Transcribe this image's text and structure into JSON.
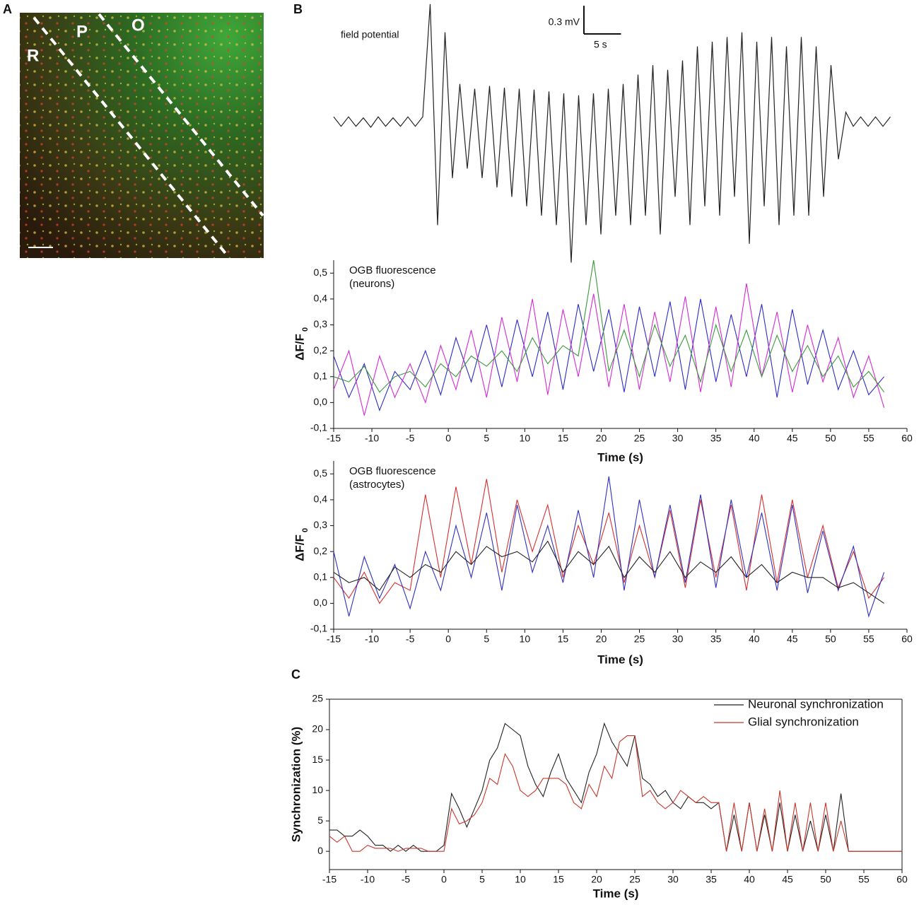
{
  "panel_labels": [
    "A",
    "B",
    "C"
  ],
  "panel_a": {
    "labels": [
      "R",
      "P",
      "O"
    ]
  },
  "chart_data": [
    {
      "type": "trace",
      "title": "field potential",
      "scale_bar": {
        "x": 5,
        "y": 0.3,
        "x_label": "5 s",
        "y_label": "0.3 mV"
      },
      "x": [
        -16,
        -15,
        -14,
        -13,
        -12,
        -11,
        -10,
        -9,
        -8,
        -7,
        -6,
        -5,
        -4,
        -3,
        -2,
        -1,
        0,
        1,
        2,
        3,
        4,
        5,
        6,
        7,
        8,
        9,
        10,
        11,
        12,
        13,
        14,
        15,
        16,
        17,
        18,
        19,
        20,
        21,
        22,
        23,
        24,
        25,
        26,
        27,
        28,
        29,
        30,
        31,
        32,
        33,
        34,
        35,
        36,
        37,
        38,
        39,
        40,
        41,
        42,
        43,
        44,
        45,
        46,
        47,
        48,
        49,
        50,
        51,
        52,
        53,
        54,
        55,
        56,
        57,
        58,
        59
      ],
      "values": [
        0.05,
        -0.05,
        0.05,
        -0.05,
        0.04,
        -0.06,
        0.05,
        -0.05,
        0.04,
        -0.05,
        0.05,
        -0.05,
        0.05,
        1.25,
        -1.1,
        0.95,
        -0.6,
        0.4,
        -0.5,
        0.35,
        -0.6,
        0.38,
        -0.7,
        0.36,
        -0.8,
        0.35,
        -0.9,
        0.34,
        -1.0,
        0.32,
        -1.1,
        0.3,
        -1.5,
        0.28,
        -1.1,
        0.3,
        -1.2,
        0.35,
        -1.0,
        0.4,
        -1.1,
        0.5,
        -1.0,
        0.6,
        -1.2,
        0.55,
        -0.8,
        0.65,
        -1.1,
        0.8,
        -0.9,
        0.85,
        -1.0,
        0.9,
        -0.8,
        0.95,
        -1.3,
        0.85,
        -0.9,
        0.9,
        -1.1,
        0.8,
        -1.0,
        0.9,
        -1.0,
        0.8,
        -0.8,
        0.6,
        -0.4,
        0.1,
        -0.05,
        0.05,
        -0.05,
        0.05,
        -0.05,
        0.05
      ],
      "color": "#222222"
    },
    {
      "type": "line",
      "annotation": [
        "OGB fluorescence",
        "(neurons)"
      ],
      "xlabel": "Time (s)",
      "ylabel": "ΔF/F",
      "ylabel_sub": "0",
      "xlim": [
        -15,
        60
      ],
      "ylim": [
        -0.1,
        0.55
      ],
      "xticks": [
        -15,
        -10,
        -5,
        0,
        5,
        10,
        15,
        20,
        25,
        30,
        35,
        40,
        45,
        50,
        55,
        60
      ],
      "yticks": [
        {
          "value": -0.1,
          "label": "-0,1"
        },
        {
          "value": 0,
          "label": "0,0"
        },
        {
          "value": 0.1,
          "label": "0,1"
        },
        {
          "value": 0.2,
          "label": "0,2"
        },
        {
          "value": 0.3,
          "label": "0,3"
        },
        {
          "value": 0.4,
          "label": "0,4"
        },
        {
          "value": 0.5,
          "label": "0,5"
        }
      ],
      "x": [
        -15,
        -13,
        -11,
        -9,
        -7,
        -5,
        -3,
        -1,
        1,
        3,
        5,
        7,
        9,
        11,
        13,
        15,
        17,
        19,
        21,
        23,
        25,
        27,
        29,
        31,
        33,
        35,
        37,
        39,
        41,
        43,
        45,
        47,
        49,
        51,
        53,
        55,
        57
      ],
      "series": [
        {
          "color": "#2b2bc8",
          "values": [
            0.18,
            0.02,
            0.15,
            -0.03,
            0.12,
            0.05,
            0.2,
            0.03,
            0.25,
            0.08,
            0.3,
            0.06,
            0.32,
            0.1,
            0.35,
            0.05,
            0.38,
            0.12,
            0.36,
            0.04,
            0.37,
            0.1,
            0.39,
            0.05,
            0.4,
            0.08,
            0.34,
            0.1,
            0.38,
            0.02,
            0.36,
            0.07,
            0.28,
            0.05,
            0.2,
            0.03,
            0.1
          ]
        },
        {
          "color": "#d42ad4",
          "values": [
            0.05,
            0.2,
            -0.05,
            0.18,
            0.02,
            0.15,
            0.0,
            0.22,
            0.05,
            0.28,
            0.02,
            0.33,
            0.08,
            0.4,
            0.03,
            0.36,
            0.1,
            0.42,
            0.06,
            0.38,
            0.05,
            0.35,
            0.08,
            0.41,
            0.04,
            0.37,
            0.06,
            0.46,
            0.1,
            0.35,
            0.04,
            0.3,
            0.08,
            0.25,
            0.02,
            0.18,
            -0.02
          ]
        },
        {
          "color": "#3a9a3a",
          "values": [
            0.1,
            0.08,
            0.14,
            0.04,
            0.1,
            0.12,
            0.06,
            0.15,
            0.1,
            0.18,
            0.14,
            0.2,
            0.12,
            0.25,
            0.15,
            0.22,
            0.18,
            0.55,
            0.12,
            0.28,
            0.1,
            0.3,
            0.14,
            0.26,
            0.08,
            0.3,
            0.12,
            0.28,
            0.1,
            0.26,
            0.12,
            0.22,
            0.1,
            0.18,
            0.06,
            0.12,
            0.04
          ]
        }
      ]
    },
    {
      "type": "line",
      "annotation": [
        "OGB fluorescence",
        "(astrocytes)"
      ],
      "xlabel": "Time (s)",
      "ylabel": "ΔF/F",
      "ylabel_sub": "0",
      "xlim": [
        -15,
        60
      ],
      "ylim": [
        -0.1,
        0.55
      ],
      "xticks": [
        -15,
        -10,
        -5,
        0,
        5,
        10,
        15,
        20,
        25,
        30,
        35,
        40,
        45,
        50,
        55,
        60
      ],
      "yticks": [
        {
          "value": -0.1,
          "label": "-0,1"
        },
        {
          "value": 0,
          "label": "0,0"
        },
        {
          "value": 0.1,
          "label": "0,1"
        },
        {
          "value": 0.2,
          "label": "0,2"
        },
        {
          "value": 0.3,
          "label": "0,3"
        },
        {
          "value": 0.4,
          "label": "0,4"
        },
        {
          "value": 0.5,
          "label": "0,5"
        }
      ],
      "x": [
        -15,
        -13,
        -11,
        -9,
        -7,
        -5,
        -3,
        -1,
        1,
        3,
        5,
        7,
        9,
        11,
        13,
        15,
        17,
        19,
        21,
        23,
        25,
        27,
        29,
        31,
        33,
        35,
        37,
        39,
        41,
        43,
        45,
        47,
        49,
        51,
        53,
        55,
        57
      ],
      "series": [
        {
          "color": "#d43030",
          "values": [
            0.1,
            0.02,
            0.12,
            0.0,
            0.08,
            0.05,
            0.42,
            0.1,
            0.45,
            0.15,
            0.48,
            0.12,
            0.4,
            0.2,
            0.38,
            0.1,
            0.3,
            0.15,
            0.35,
            0.08,
            0.3,
            0.1,
            0.36,
            0.06,
            0.4,
            0.1,
            0.38,
            0.05,
            0.42,
            0.08,
            0.4,
            0.1,
            0.3,
            0.06,
            0.2,
            0.02,
            0.1
          ]
        },
        {
          "color": "#3030c0",
          "values": [
            0.2,
            -0.05,
            0.18,
            0.02,
            0.15,
            -0.02,
            0.2,
            0.05,
            0.3,
            0.1,
            0.35,
            0.05,
            0.38,
            0.12,
            0.3,
            0.08,
            0.36,
            0.1,
            0.49,
            0.05,
            0.4,
            0.1,
            0.38,
            0.08,
            0.42,
            0.06,
            0.4,
            0.1,
            0.35,
            0.05,
            0.38,
            0.04,
            0.28,
            0.05,
            0.22,
            -0.05,
            0.12
          ]
        },
        {
          "color": "#222222",
          "values": [
            0.12,
            0.08,
            0.1,
            0.05,
            0.14,
            0.1,
            0.15,
            0.12,
            0.2,
            0.15,
            0.22,
            0.18,
            0.2,
            0.16,
            0.24,
            0.12,
            0.2,
            0.15,
            0.22,
            0.1,
            0.18,
            0.12,
            0.2,
            0.1,
            0.16,
            0.12,
            0.18,
            0.1,
            0.15,
            0.08,
            0.12,
            0.1,
            0.1,
            0.06,
            0.08,
            0.04,
            0.0
          ]
        }
      ]
    },
    {
      "type": "line",
      "xlabel": "Time (s)",
      "ylabel": "Synchronization (%)",
      "legend": "upper right",
      "frame": true,
      "xlim": [
        -15,
        60
      ],
      "ylim": [
        -3,
        25
      ],
      "xticks": [
        -15,
        -10,
        -5,
        0,
        5,
        10,
        15,
        20,
        25,
        30,
        35,
        40,
        45,
        50,
        55,
        60
      ],
      "yticks": [
        0,
        5,
        10,
        15,
        20,
        25
      ],
      "x": [
        -15,
        -14,
        -13,
        -12,
        -11,
        -10,
        -9,
        -8,
        -7,
        -6,
        -5,
        -4,
        -3,
        -2,
        -1,
        0,
        1,
        2,
        3,
        4,
        5,
        6,
        7,
        8,
        9,
        10,
        11,
        12,
        13,
        14,
        15,
        16,
        17,
        18,
        19,
        20,
        21,
        22,
        23,
        24,
        25,
        26,
        27,
        28,
        29,
        30,
        31,
        32,
        33,
        34,
        35,
        36,
        37,
        38,
        39,
        40,
        41,
        42,
        43,
        44,
        45,
        46,
        47,
        48,
        49,
        50,
        51,
        52,
        53,
        54,
        55,
        56,
        57,
        58,
        59,
        60
      ],
      "series": [
        {
          "name": "Neuronal synchronization",
          "color": "#222222",
          "values": [
            3.5,
            3.5,
            2.5,
            2.5,
            3.5,
            2.5,
            1,
            1,
            0,
            1,
            0,
            1,
            0,
            0,
            0,
            1,
            9.5,
            7,
            4,
            7,
            10,
            15,
            17,
            21,
            20,
            19,
            14,
            11,
            9,
            13,
            16,
            12,
            10,
            8,
            13,
            16,
            21,
            18,
            16,
            14,
            19,
            12,
            11,
            9,
            10,
            8,
            7,
            9,
            8,
            8,
            7,
            8,
            0,
            6,
            0,
            8,
            0,
            6,
            0,
            8,
            0,
            6,
            0,
            5,
            0,
            6,
            0,
            9.5,
            0,
            0,
            0,
            0,
            0,
            0,
            0,
            0
          ]
        },
        {
          "name": "Glial synchronization",
          "color": "#c8382c",
          "values": [
            2.5,
            1.5,
            2.5,
            0,
            0,
            1,
            0.5,
            0.5,
            0.5,
            0,
            0.5,
            0.5,
            0.5,
            0,
            0,
            0,
            7,
            4.5,
            5,
            6,
            8,
            12,
            11,
            16,
            14,
            10,
            9,
            10,
            12,
            12,
            12,
            11,
            8,
            7,
            11,
            9,
            14,
            12,
            18,
            19,
            19,
            9,
            10,
            8,
            7,
            8,
            10,
            9,
            8,
            9,
            8,
            8,
            0,
            8,
            0,
            8,
            0,
            7,
            0,
            10,
            0,
            8,
            0,
            8,
            0,
            8,
            0,
            5,
            0,
            0,
            0,
            0,
            0,
            0,
            0,
            0
          ]
        }
      ]
    }
  ]
}
